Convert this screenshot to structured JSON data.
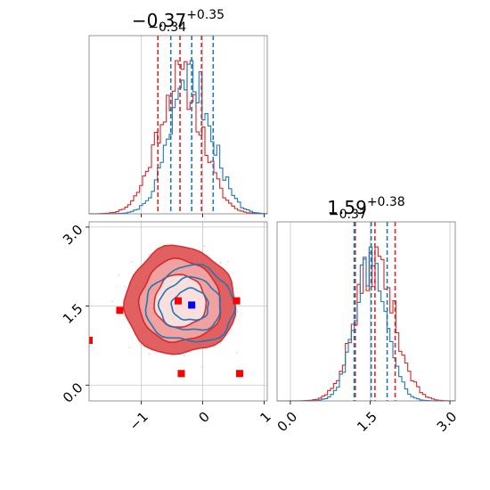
{
  "colors": {
    "red": "#d62728",
    "blue": "#1f77b4",
    "red_fill": "#ef9a9a",
    "grid": "#c8c8c8",
    "marker_red": "#ff0000",
    "marker_blue": "#0000ff"
  },
  "chart_data": [
    {
      "type": "histogram",
      "panel": "top-left",
      "parameter": 1,
      "title": {
        "median": "−0.37",
        "upper": "+0.35",
        "lower": "−0.34"
      },
      "xlim": [
        -1.85,
        1.05
      ],
      "xticks": [
        -1,
        0,
        1
      ],
      "series": [
        {
          "color": "red",
          "quantiles": [
            -0.73,
            -0.37,
            -0.02
          ],
          "mean": -0.37,
          "sigma": 0.36
        },
        {
          "color": "blue",
          "quantiles": [
            -0.52,
            -0.18,
            0.17
          ],
          "mean": -0.18,
          "sigma": 0.34
        }
      ]
    },
    {
      "type": "histogram",
      "panel": "bottom-right",
      "parameter": 2,
      "title": {
        "median": "1.59",
        "upper": "+0.38",
        "lower": "−0.37"
      },
      "xlim": [
        -0.25,
        3.1
      ],
      "xticks": [
        0.0,
        1.5,
        3.0
      ],
      "xtick_labels": [
        "0.0",
        "1.5",
        "3.0"
      ],
      "series": [
        {
          "color": "red",
          "quantiles": [
            1.22,
            1.59,
            1.97
          ],
          "mean": 1.59,
          "sigma": 0.37
        },
        {
          "color": "blue",
          "quantiles": [
            1.2,
            1.52,
            1.82
          ],
          "mean": 1.52,
          "sigma": 0.3
        }
      ]
    },
    {
      "type": "scatter",
      "panel": "bottom-left",
      "xlim": [
        -1.85,
        1.05
      ],
      "ylim": [
        -0.3,
        3.1
      ],
      "xticks": [
        -1,
        0,
        1
      ],
      "xtick_labels": [
        "−1",
        "0",
        "1"
      ],
      "yticks": [
        0.0,
        1.5,
        3.0
      ],
      "ytick_labels": [
        "0.0",
        "1.5",
        "3.0"
      ],
      "contours": [
        {
          "color": "red",
          "center": [
            -0.37,
            1.59
          ],
          "radii": [
            [
              0.42,
              0.5
            ],
            [
              0.66,
              0.78
            ],
            [
              0.9,
              1.02
            ]
          ]
        },
        {
          "color": "blue",
          "center": [
            -0.2,
            1.52
          ],
          "radii": [
            [
              0.3,
              0.3
            ],
            [
              0.5,
              0.5
            ],
            [
              0.72,
              0.72
            ]
          ]
        }
      ],
      "markers": [
        {
          "color": "marker_red",
          "x": -1.35,
          "y": 1.42
        },
        {
          "color": "marker_red",
          "x": -0.4,
          "y": 1.6
        },
        {
          "color": "marker_red",
          "x": 0.55,
          "y": 1.6
        },
        {
          "color": "marker_red",
          "x": -1.85,
          "y": 0.85
        },
        {
          "color": "marker_red",
          "x": -0.35,
          "y": 0.22
        },
        {
          "color": "marker_red",
          "x": 0.6,
          "y": 0.22
        },
        {
          "color": "marker_blue",
          "x": -0.18,
          "y": 1.52
        }
      ]
    }
  ]
}
